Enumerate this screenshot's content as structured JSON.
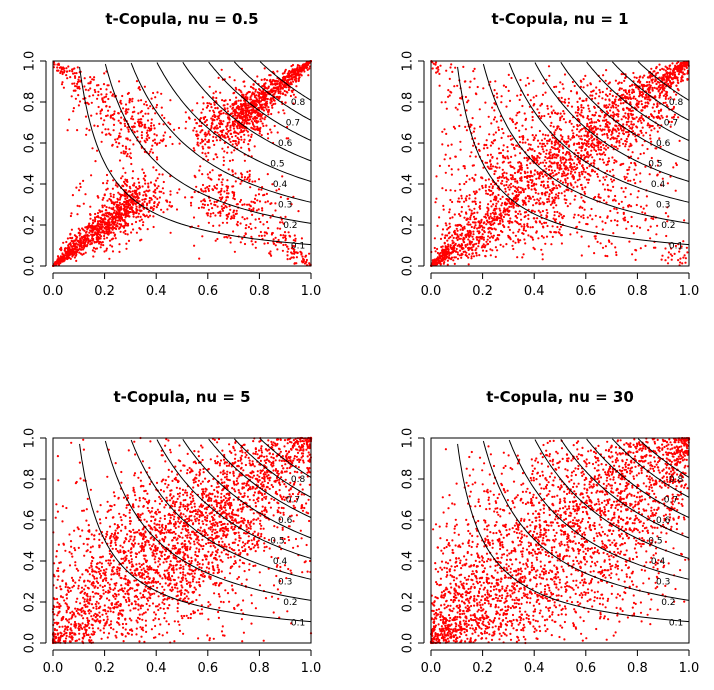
{
  "figure": {
    "background": "#ffffff",
    "point_color": "#ff0000",
    "contour_color": "#000000"
  },
  "chart_data": [
    {
      "type": "scatter",
      "title": "t-Copula, nu = 0.5",
      "nu": 0.5,
      "xlabel": "",
      "ylabel": "",
      "xlim": [
        0,
        1
      ],
      "ylim": [
        0,
        1
      ],
      "x_ticks": [
        "0.0",
        "0.2",
        "0.4",
        "0.6",
        "0.8",
        "1.0"
      ],
      "y_ticks": [
        "0.0",
        "0.2",
        "0.4",
        "0.6",
        "0.8",
        "1.0"
      ],
      "contour_levels": [
        "0.1",
        "0.2",
        "0.3",
        "0.4",
        "0.5",
        "0.6",
        "0.7",
        "0.8"
      ],
      "points_approx": 3000,
      "grid": false,
      "legend": "none"
    },
    {
      "type": "scatter",
      "title": "t-Copula, nu = 1",
      "nu": 1,
      "xlabel": "",
      "ylabel": "",
      "xlim": [
        0,
        1
      ],
      "ylim": [
        0,
        1
      ],
      "x_ticks": [
        "0.0",
        "0.2",
        "0.4",
        "0.6",
        "0.8",
        "1.0"
      ],
      "y_ticks": [
        "0.0",
        "0.2",
        "0.4",
        "0.6",
        "0.8",
        "1.0"
      ],
      "contour_levels": [
        "0.1",
        "0.2",
        "0.3",
        "0.4",
        "0.5",
        "0.6",
        "0.7",
        "0.8"
      ],
      "points_approx": 3000,
      "grid": false,
      "legend": "none"
    },
    {
      "type": "scatter",
      "title": "t-Copula, nu = 5",
      "nu": 5,
      "xlabel": "",
      "ylabel": "",
      "xlim": [
        0,
        1
      ],
      "ylim": [
        0,
        1
      ],
      "x_ticks": [
        "0.0",
        "0.2",
        "0.4",
        "0.6",
        "0.8",
        "1.0"
      ],
      "y_ticks": [
        "0.0",
        "0.2",
        "0.4",
        "0.6",
        "0.8",
        "1.0"
      ],
      "contour_levels": [
        "0.1",
        "0.2",
        "0.3",
        "0.4",
        "0.5",
        "0.6",
        "0.7",
        "0.8"
      ],
      "points_approx": 3000,
      "grid": false,
      "legend": "none"
    },
    {
      "type": "scatter",
      "title": "t-Copula, nu = 30",
      "nu": 30,
      "xlabel": "",
      "ylabel": "",
      "xlim": [
        0,
        1
      ],
      "ylim": [
        0,
        1
      ],
      "x_ticks": [
        "0.0",
        "0.2",
        "0.4",
        "0.6",
        "0.8",
        "1.0"
      ],
      "y_ticks": [
        "0.0",
        "0.2",
        "0.4",
        "0.6",
        "0.8",
        "1.0"
      ],
      "contour_levels": [
        "0.1",
        "0.2",
        "0.3",
        "0.4",
        "0.5",
        "0.6",
        "0.7",
        "0.8"
      ],
      "points_approx": 3000,
      "grid": false,
      "legend": "none"
    }
  ]
}
